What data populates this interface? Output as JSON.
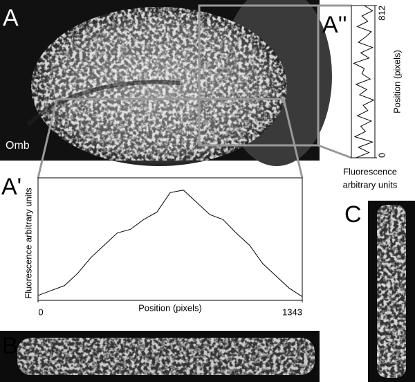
{
  "panel_labels": {
    "a": "A",
    "a_prime": "A'",
    "a_double_prime": "A''",
    "b": "B",
    "c": "C"
  },
  "stain_label": "Omb",
  "chart_data": [
    {
      "type": "line",
      "panel": "A'",
      "xlabel": "Position (pixels)",
      "ylabel": "Fluorescence arbitrary units",
      "x": [
        0,
        67,
        134,
        201,
        269,
        336,
        403,
        470,
        537,
        604,
        672,
        739,
        806,
        873,
        940,
        1007,
        1075,
        1142,
        1209,
        1276,
        1343
      ],
      "values": [
        4,
        8,
        12,
        22,
        35,
        45,
        55,
        58,
        66,
        72,
        88,
        90,
        80,
        70,
        66,
        55,
        45,
        30,
        20,
        10,
        3
      ],
      "xlim": [
        0,
        1343
      ],
      "xticks": [
        0,
        1343
      ],
      "ylim": [
        0,
        100
      ],
      "color": "#000000"
    },
    {
      "type": "line",
      "panel": "A''",
      "orientation": "vertical",
      "xlabel": "Position (pixels)",
      "ylabel": [
        "Fluorescence",
        "arbitrary units"
      ],
      "x": [
        0,
        28,
        56,
        84,
        112,
        140,
        168,
        196,
        224,
        252,
        280,
        308,
        336,
        364,
        392,
        420,
        448,
        476,
        504,
        532,
        560,
        588,
        616,
        644,
        672,
        700,
        728,
        756,
        784,
        812
      ],
      "values": [
        20,
        75,
        30,
        90,
        15,
        60,
        40,
        85,
        25,
        70,
        50,
        95,
        35,
        65,
        20,
        80,
        45,
        55,
        10,
        75,
        40,
        90,
        30,
        60,
        85,
        25,
        70,
        45,
        90,
        55
      ],
      "xlim": [
        0,
        812
      ],
      "xticks": [
        0,
        812
      ],
      "ylim": [
        0,
        100
      ],
      "color": "#000000"
    }
  ]
}
